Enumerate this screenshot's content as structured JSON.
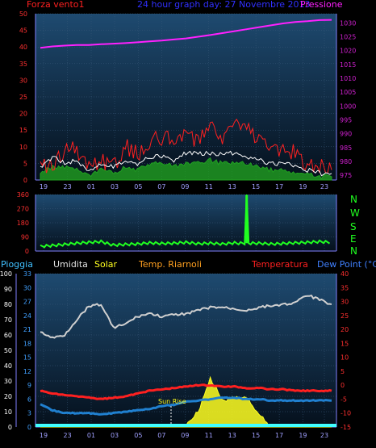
{
  "colors": {
    "wind": "#ff2020",
    "gust": "#ffffff",
    "avg": "#20a020",
    "pressure": "#ff20ff",
    "direction": "#20ff20",
    "humidity": "#d0d0d0",
    "temperature": "#ff2020",
    "dewpoint": "#2080d0",
    "rain": "#40ffff",
    "solar": "#ffff20",
    "axis": "#8080ff",
    "tick_left": "#ff3030",
    "tick_right": "#d020d0",
    "tick_temp": "#ff3030",
    "bg_top": "#1e4a70",
    "bg_bottom": "#05101c"
  },
  "header": {
    "wind_label": "Forza vento1",
    "title": "24 hour graph day: 27 Novembre 2013",
    "pressure_label": "Pressione"
  },
  "labels": {
    "rain": "Pioggia",
    "humidity": "Umidita",
    "solar": "Solar",
    "riarnoli": "Temp. Riarnoli",
    "temperature": "Temperatura",
    "dewpoint": "Dew Point (°C)",
    "sunrise": "Sun Rise",
    "compass": [
      "N",
      "W",
      "S",
      "E",
      "N"
    ]
  },
  "chart_data": [
    {
      "type": "line",
      "title": "24 hour graph day: 27 Novembre 2013",
      "x_labels": [
        "19",
        "23",
        "01",
        "03",
        "05",
        "07",
        "09",
        "11",
        "13",
        "15",
        "17",
        "19",
        "23"
      ],
      "y_left": {
        "label": "Forza vento1",
        "ticks": [
          0,
          5,
          10,
          15,
          20,
          25,
          30,
          35,
          40,
          45,
          50
        ],
        "lim": [
          0,
          50
        ]
      },
      "y_right": {
        "label": "Pressione",
        "ticks": [
          975,
          980,
          985,
          990,
          995,
          1000,
          1005,
          1010,
          1015,
          1020,
          1025,
          1030
        ],
        "lim": [
          973.3,
          1033.3
        ]
      },
      "series": [
        {
          "name": "Pressione",
          "axis": "right",
          "values": [
            1021,
            1021.5,
            1021.8,
            1022,
            1022,
            1022.3,
            1022.5,
            1022.7,
            1023,
            1023.3,
            1023.6,
            1024,
            1024.4,
            1025,
            1025.6,
            1026.3,
            1027,
            1027.7,
            1028.4,
            1029.1,
            1029.8,
            1030.3,
            1030.6,
            1031,
            1031.1
          ]
        },
        {
          "axis": "left",
          "values": [
            5,
            4,
            9,
            9,
            4,
            6,
            4,
            10,
            8,
            11,
            13,
            12,
            14,
            12,
            18,
            13,
            17,
            15,
            13,
            10,
            9,
            8,
            5,
            4,
            3
          ]
        },
        {
          "axis": "left",
          "values": [
            4,
            7,
            5,
            6,
            3,
            5,
            4,
            6,
            5,
            7,
            7,
            6,
            8,
            8,
            8,
            8,
            8,
            7,
            6,
            5,
            5,
            4,
            3,
            2,
            2
          ]
        },
        {
          "axis": "left",
          "values": [
            2,
            4,
            4,
            3,
            1,
            3,
            2,
            4,
            3,
            5,
            5,
            4,
            5,
            5,
            6,
            5,
            5,
            5,
            4,
            3,
            3,
            2,
            2,
            1,
            1
          ]
        }
      ]
    },
    {
      "type": "line",
      "y_ticks": [
        0,
        90,
        180,
        270,
        360
      ],
      "ylim": [
        0,
        360
      ],
      "series": [
        {
          "axis": "left",
          "values": [
            30,
            35,
            42,
            50,
            55,
            60,
            38,
            42,
            45,
            52,
            48,
            50,
            55,
            47,
            50,
            45,
            52,
            360,
            50,
            45,
            48,
            52,
            55,
            60,
            55
          ]
        }
      ]
    },
    {
      "type": "area",
      "x_labels": [
        "19",
        "23",
        "01",
        "03",
        "05",
        "07",
        "09",
        "11",
        "13",
        "15",
        "17",
        "19",
        "23"
      ],
      "y_left": {
        "ticks": [
          0,
          10,
          20,
          30,
          40,
          50,
          60,
          70,
          80,
          90,
          100
        ],
        "lim": [
          0,
          100
        ]
      },
      "y_left2": {
        "ticks": [
          0,
          3,
          6,
          9,
          12,
          15,
          18,
          21,
          24,
          27,
          30,
          33
        ],
        "lim": [
          0,
          33
        ]
      },
      "y_right": {
        "label": "Dew Point (°C)",
        "ticks": [
          -15,
          -10,
          -5,
          0,
          5,
          10,
          15,
          20,
          25,
          30,
          35,
          40
        ],
        "lim": [
          -15,
          40
        ]
      },
      "series": [
        {
          "name": "Umidita",
          "axis": "left",
          "values": [
            62,
            58,
            60,
            70,
            79,
            80,
            65,
            67,
            72,
            74,
            72,
            73,
            74,
            76,
            78,
            78,
            77,
            76,
            78,
            79,
            80,
            81,
            86,
            83,
            80
          ]
        },
        {
          "name": "Temperatura",
          "axis": "right",
          "values": [
            -2,
            -3,
            -3.5,
            -4,
            -4.5,
            -5,
            -4.5,
            -4,
            -3,
            -2,
            -1.5,
            -1,
            -0.5,
            0,
            0,
            -0.5,
            -0.5,
            -1,
            -1,
            -1.5,
            -1.5,
            -2,
            -2,
            -2,
            -2
          ]
        },
        {
          "name": "Dew Point (°C)",
          "axis": "right",
          "values": [
            -7,
            -9,
            -10,
            -10,
            -10,
            -10.5,
            -10,
            -9.5,
            -9,
            -8.5,
            -7.5,
            -7,
            -6,
            -5.5,
            -5,
            -4.5,
            -4.5,
            -5,
            -5,
            -5.5,
            -5.5,
            -5.5,
            -5.5,
            -5.5,
            -5.5
          ]
        },
        {
          "name": "Pioggia",
          "axis": "left",
          "values": [
            0,
            0,
            0,
            0,
            0,
            0,
            0,
            0,
            0,
            0,
            0,
            0,
            0,
            0,
            0,
            0,
            0,
            0,
            0,
            0,
            0,
            0,
            0,
            0,
            0
          ]
        },
        {
          "name": "Solar",
          "axis": "left",
          "values": [
            0,
            0,
            0,
            0,
            0,
            0,
            0,
            0,
            0,
            0,
            0,
            0,
            2,
            10,
            32,
            17,
            19,
            20,
            8,
            0,
            0,
            0,
            0,
            0,
            0
          ]
        }
      ],
      "annotations": [
        {
          "text": "Sun Rise",
          "x": "07"
        }
      ]
    }
  ]
}
